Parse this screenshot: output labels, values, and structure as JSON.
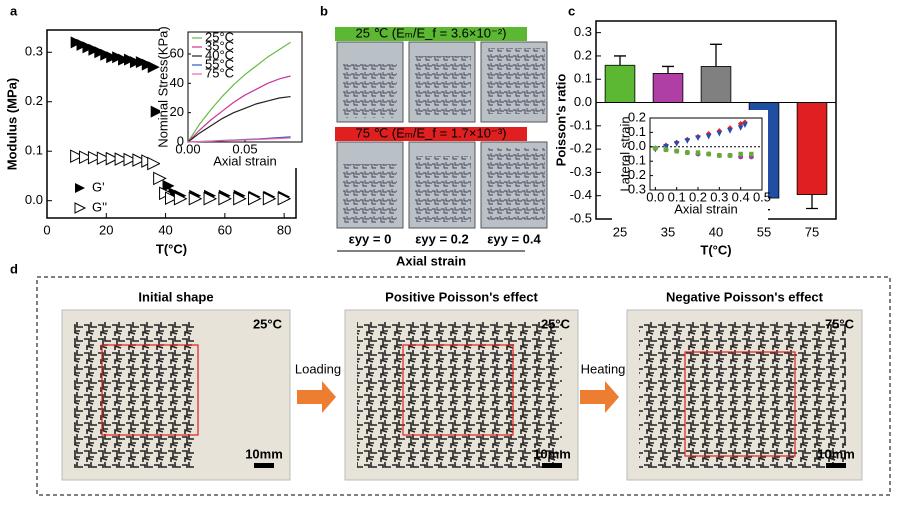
{
  "panel_labels": [
    "a",
    "b",
    "c",
    "d"
  ],
  "chart_data": [
    {
      "type": "scatter",
      "x_label": "T(°C)",
      "y_label": "Modulus (MPa)",
      "xlim": [
        0,
        84
      ],
      "xticks": [
        0,
        20,
        40,
        60,
        80
      ],
      "ylim": [
        -0.035,
        0.345
      ],
      "yticks": [
        {
          "value": 0,
          "label": "0.0"
        },
        0.1,
        0.2,
        0.3
      ],
      "legend": "lower left",
      "series": [
        {
          "name": "G'",
          "color": "#000000",
          "marker": "triangle-right",
          "x": [
            10,
            12,
            14,
            16,
            18,
            20,
            22,
            24,
            26,
            28,
            30,
            32,
            34,
            36,
            37,
            41,
            43,
            45,
            50,
            55,
            60,
            65,
            70,
            75,
            80
          ],
          "values": [
            0.32,
            0.315,
            0.31,
            0.305,
            0.3,
            0.295,
            0.29,
            0.29,
            0.285,
            0.285,
            0.28,
            0.28,
            0.275,
            0.27,
            0.18,
            0.03,
            0.015,
            0.01,
            0.01,
            0.01,
            0.01,
            0.01,
            0.008,
            0.008,
            0.008
          ]
        },
        {
          "name": "G''",
          "color": "#000000",
          "marker": "triangle-right-open",
          "x": [
            10,
            13,
            16,
            19,
            22,
            25,
            28,
            31,
            34,
            36,
            38,
            40,
            42,
            45,
            50,
            55,
            60,
            65,
            70,
            75,
            80
          ],
          "values": [
            0.09,
            0.088,
            0.087,
            0.086,
            0.085,
            0.084,
            0.083,
            0.082,
            0.08,
            0.075,
            0.045,
            0.015,
            0.005,
            0.004,
            0.004,
            0.004,
            0.004,
            0.004,
            0.004,
            0.004,
            0.004
          ]
        }
      ]
    },
    {
      "type": "line",
      "x_label": "Axial strain",
      "y_label": "Nominal Stress(KPa)",
      "x": [
        0,
        0.01,
        0.02,
        0.03,
        0.04,
        0.05,
        0.06,
        0.07,
        0.08,
        0.09
      ],
      "xlim": [
        0,
        0.1
      ],
      "xticks": [
        {
          "value": 0,
          "label": "0.00"
        },
        {
          "value": 0.05,
          "label": "0.05"
        }
      ],
      "ylim": [
        0,
        75
      ],
      "yticks": [
        0,
        20,
        40,
        60
      ],
      "legend": "upper left",
      "series": [
        {
          "name": "25°C",
          "color": "#66bb44",
          "values": [
            0,
            12,
            22,
            31,
            39,
            46,
            52,
            58,
            63,
            68
          ]
        },
        {
          "name": "35°C",
          "color": "#cc3399",
          "values": [
            0,
            8,
            15,
            21,
            27,
            32,
            36,
            40,
            43,
            45
          ]
        },
        {
          "name": "40°C",
          "color": "#222222",
          "values": [
            0,
            6,
            11,
            16,
            20,
            23,
            26,
            28,
            30,
            31
          ]
        },
        {
          "name": "55°C",
          "color": "#3355cc",
          "values": [
            0,
            0.3,
            0.6,
            1,
            1.3,
            1.7,
            2,
            2.5,
            3,
            3.5
          ]
        },
        {
          "name": "75°C",
          "color": "#ee66aa",
          "values": [
            0,
            0.3,
            0.5,
            0.8,
            1.1,
            1.4,
            1.7,
            2,
            2.4,
            2.8
          ]
        }
      ]
    },
    {
      "type": "bar",
      "x_label": "T(°C)",
      "y_label": "Poisson's ratio",
      "categories": [
        "25",
        "35",
        "40",
        "55",
        "75"
      ],
      "values": [
        0.16,
        0.125,
        0.155,
        -0.41,
        -0.395
      ],
      "errors": [
        0.04,
        0.03,
        0.095,
        0.05,
        0.06
      ],
      "colors": [
        "#5cb832",
        "#b03fa5",
        "#808080",
        "#1f4ea3",
        "#e02020"
      ],
      "ylim": [
        -0.5,
        0.35
      ],
      "yticks": [
        -0.5,
        -0.4,
        -0.3,
        -0.2,
        -0.1,
        {
          "value": 0,
          "label": "0.0"
        },
        0.1,
        0.2,
        0.3
      ]
    },
    {
      "type": "scatter",
      "x_label": "Axial strain",
      "y_label": "Lateral strain",
      "zero_line": true,
      "xlim": [
        -0.025,
        0.5
      ],
      "xticks": [
        {
          "value": 0,
          "label": "0.0"
        },
        0.1,
        0.2,
        0.3,
        0.4,
        0.5
      ],
      "ylim": [
        -0.3,
        0.2
      ],
      "yticks": [
        -0.3,
        -0.2,
        -0.1,
        {
          "value": 0,
          "label": "0.0"
        },
        0.1,
        0.2
      ],
      "series": [
        {
          "color": "#e0202a",
          "marker": "diamond",
          "x": [
            0,
            0.05,
            0.1,
            0.15,
            0.2,
            0.25,
            0.3,
            0.35,
            0.4,
            0.42
          ],
          "values": [
            -0.01,
            0.01,
            0.03,
            0.05,
            0.07,
            0.09,
            0.11,
            0.13,
            0.16,
            0.17
          ]
        },
        {
          "color": "#2050b0",
          "marker": "triangle-down",
          "x": [
            0,
            0.05,
            0.1,
            0.15,
            0.2,
            0.25,
            0.3,
            0.35,
            0.4,
            0.42
          ],
          "values": [
            -0.02,
            0,
            0.02,
            0.04,
            0.06,
            0.07,
            0.09,
            0.11,
            0.13,
            0.15
          ]
        },
        {
          "color": "#a040a0",
          "marker": "circle",
          "x": [
            0,
            0.05,
            0.1,
            0.15,
            0.2,
            0.25,
            0.3,
            0.35,
            0.4,
            0.45
          ],
          "values": [
            -0.01,
            -0.02,
            -0.03,
            -0.04,
            -0.05,
            -0.05,
            -0.06,
            -0.06,
            -0.07,
            -0.07
          ]
        },
        {
          "color": "#60b030",
          "marker": "square",
          "x": [
            0,
            0.05,
            0.1,
            0.15,
            0.2,
            0.25,
            0.3,
            0.35,
            0.4,
            0.45
          ],
          "values": [
            -0.01,
            -0.02,
            -0.03,
            -0.04,
            -0.04,
            -0.05,
            -0.06,
            -0.06,
            -0.05,
            -0.05
          ]
        }
      ]
    }
  ],
  "panel_b": {
    "rows": [
      {
        "label": "25 ℃  (Eₘ/E_f = 3.6×10⁻²)",
        "color": "#5cb832"
      },
      {
        "label": "75 ℃  (Eₘ/E_f = 1.7×10⁻³)",
        "color": "#e02020"
      }
    ],
    "strain_labels": [
      "εyy = 0",
      "εyy = 0.2",
      "εyy = 0.4"
    ],
    "x_label": "Axial strain"
  },
  "panel_d": {
    "photos": [
      {
        "title": "Initial shape",
        "temperature": "25°C",
        "scale": "10mm"
      },
      {
        "title": "Positive Poisson's effect",
        "temperature": "25°C",
        "scale": "10mm"
      },
      {
        "title": "Negative Poisson's effect",
        "temperature": "75°C",
        "scale": "10mm"
      }
    ],
    "steps": [
      "Loading",
      "Heating"
    ]
  }
}
